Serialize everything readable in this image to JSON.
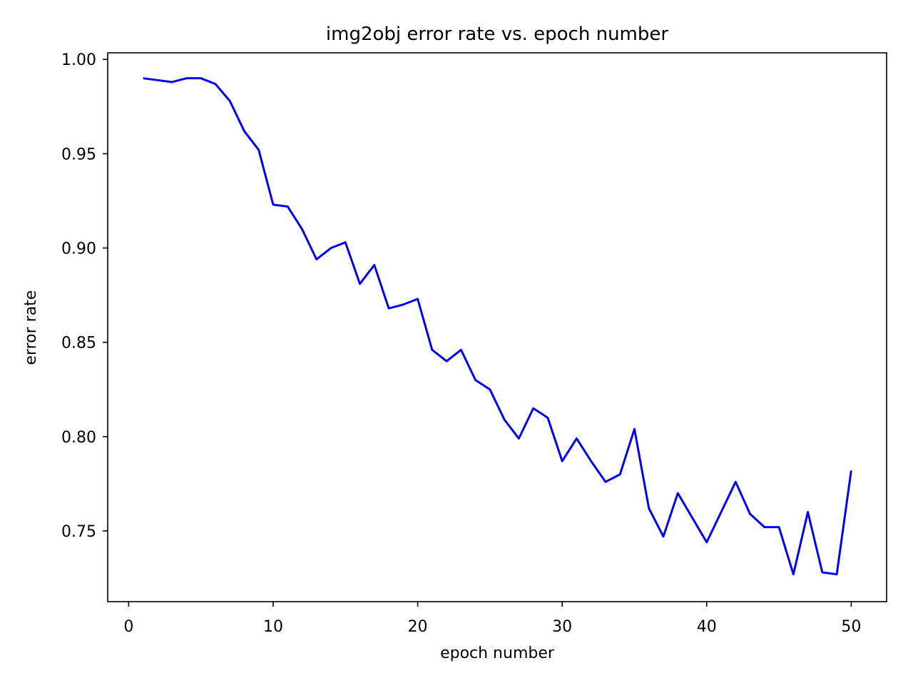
{
  "chart_data": {
    "type": "line",
    "title": "img2obj error rate vs. epoch number",
    "xlabel": "epoch number",
    "ylabel": "error rate",
    "xlim": [
      -1.45,
      52.45
    ],
    "ylim": [
      0.7125,
      1.0035
    ],
    "xticks": [
      0,
      10,
      20,
      30,
      40,
      50
    ],
    "xtick_labels": [
      "0",
      "10",
      "20",
      "30",
      "40",
      "50"
    ],
    "yticks": [
      0.75,
      0.8,
      0.85,
      0.9,
      0.95,
      1.0
    ],
    "ytick_labels": [
      "0.75",
      "0.80",
      "0.85",
      "0.90",
      "0.95",
      "1.00"
    ],
    "grid": false,
    "legend": "none",
    "series": [
      {
        "color": "#0000ff",
        "x": [
          1,
          2,
          3,
          4,
          5,
          6,
          7,
          8,
          9,
          10,
          11,
          12,
          13,
          14,
          15,
          16,
          17,
          18,
          19,
          20,
          21,
          22,
          23,
          24,
          25,
          26,
          27,
          28,
          29,
          30,
          31,
          32,
          33,
          34,
          35,
          36,
          37,
          38,
          39,
          40,
          41,
          42,
          43,
          44,
          45,
          46,
          47,
          48,
          49,
          50
        ],
        "y": [
          0.99,
          0.989,
          0.988,
          0.99,
          0.99,
          0.987,
          0.978,
          0.962,
          0.952,
          0.923,
          0.922,
          0.91,
          0.894,
          0.9,
          0.903,
          0.881,
          0.891,
          0.868,
          0.87,
          0.873,
          0.846,
          0.84,
          0.846,
          0.83,
          0.825,
          0.809,
          0.799,
          0.815,
          0.81,
          0.787,
          0.799,
          0.787,
          0.776,
          0.78,
          0.804,
          0.762,
          0.747,
          0.77,
          0.757,
          0.744,
          0.76,
          0.776,
          0.759,
          0.752,
          0.752,
          0.727,
          0.76,
          0.728,
          0.727,
          0.782
        ]
      }
    ]
  }
}
